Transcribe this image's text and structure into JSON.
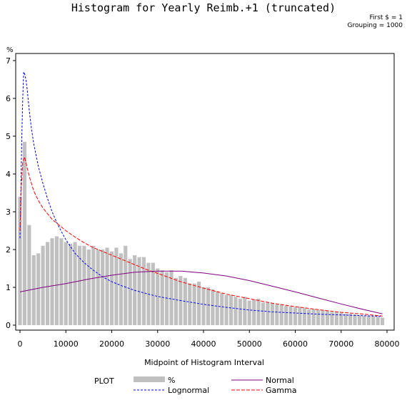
{
  "chart_data": {
    "type": "bar",
    "title": "Histogram for Yearly Reimb.+1 (truncated)",
    "notes": [
      "First $ = 1",
      "Grouping = 1000"
    ],
    "xlabel": "Midpoint of Histogram Interval",
    "ylabel": "%",
    "xlim": [
      -500,
      80000
    ],
    "ylim": [
      0,
      7
    ],
    "x_ticks": [
      0,
      10000,
      20000,
      30000,
      40000,
      50000,
      60000,
      70000,
      80000
    ],
    "y_ticks": [
      0,
      1,
      2,
      3,
      4,
      5,
      6,
      7
    ],
    "bar_width": 1000,
    "bars": {
      "name": "%",
      "color": "#c0c0c0",
      "x": [
        0,
        1000,
        2000,
        3000,
        4000,
        5000,
        6000,
        7000,
        8000,
        9000,
        10000,
        11000,
        12000,
        13000,
        14000,
        15000,
        16000,
        17000,
        18000,
        19000,
        20000,
        21000,
        22000,
        23000,
        24000,
        25000,
        26000,
        27000,
        28000,
        29000,
        30000,
        31000,
        32000,
        33000,
        34000,
        35000,
        36000,
        37000,
        38000,
        39000,
        40000,
        41000,
        42000,
        43000,
        44000,
        45000,
        46000,
        47000,
        48000,
        49000,
        50000,
        51000,
        52000,
        53000,
        54000,
        55000,
        56000,
        57000,
        58000,
        59000,
        60000,
        61000,
        62000,
        63000,
        64000,
        65000,
        66000,
        67000,
        68000,
        69000,
        70000,
        71000,
        72000,
        73000,
        74000,
        75000,
        76000,
        77000,
        78000,
        79000
      ],
      "values": [
        3.4,
        4.85,
        2.65,
        1.85,
        1.9,
        2.1,
        2.2,
        2.3,
        2.35,
        2.3,
        2.2,
        2.15,
        2.2,
        2.1,
        2.1,
        2.0,
        2.1,
        2.0,
        2.0,
        2.05,
        1.95,
        2.05,
        1.9,
        2.1,
        1.75,
        1.85,
        1.8,
        1.8,
        1.65,
        1.65,
        1.5,
        1.45,
        1.4,
        1.45,
        1.25,
        1.3,
        1.25,
        1.1,
        1.1,
        1.15,
        1.0,
        1.0,
        0.95,
        0.9,
        0.85,
        0.8,
        0.8,
        0.75,
        0.7,
        0.75,
        0.65,
        0.68,
        0.7,
        0.6,
        0.6,
        0.58,
        0.55,
        0.55,
        0.52,
        0.5,
        0.48,
        0.48,
        0.45,
        0.42,
        0.42,
        0.4,
        0.4,
        0.38,
        0.35,
        0.35,
        0.33,
        0.3,
        0.3,
        0.28,
        0.26,
        0.25,
        0.25,
        0.23,
        0.22,
        0.2
      ]
    },
    "series": [
      {
        "name": "Lognormal",
        "color": "#0000ff",
        "dash": "3,2",
        "x": [
          0,
          200,
          400,
          600,
          800,
          1000,
          1300,
          1600,
          2000,
          2500,
          3000,
          4000,
          5000,
          6000,
          7000,
          8000,
          9000,
          10000,
          12000,
          14000,
          16000,
          18000,
          20000,
          22000,
          25000,
          28000,
          30000,
          35000,
          40000,
          45000,
          50000,
          55000,
          60000,
          65000,
          70000,
          75000,
          79000
        ],
        "values": [
          2.3,
          3.6,
          5.0,
          6.0,
          6.7,
          6.65,
          6.5,
          6.2,
          5.7,
          5.2,
          4.8,
          4.2,
          3.75,
          3.35,
          3.0,
          2.72,
          2.48,
          2.26,
          1.9,
          1.65,
          1.45,
          1.28,
          1.15,
          1.05,
          0.92,
          0.82,
          0.76,
          0.65,
          0.55,
          0.47,
          0.4,
          0.35,
          0.32,
          0.29,
          0.27,
          0.25,
          0.23
        ]
      },
      {
        "name": "Gamma",
        "color": "#ff0000",
        "dash": "5,2",
        "x": [
          0,
          300,
          600,
          1000,
          1500,
          2000,
          2500,
          3000,
          4000,
          5000,
          6000,
          7000,
          8000,
          10000,
          12000,
          14000,
          16000,
          18000,
          20000,
          22000,
          25000,
          28000,
          30000,
          35000,
          40000,
          45000,
          50000,
          55000,
          60000,
          65000,
          70000,
          75000,
          79000
        ],
        "values": [
          2.5,
          3.7,
          4.3,
          4.45,
          4.2,
          3.95,
          3.75,
          3.55,
          3.3,
          3.1,
          2.95,
          2.8,
          2.7,
          2.5,
          2.33,
          2.18,
          2.05,
          1.95,
          1.85,
          1.75,
          1.6,
          1.45,
          1.37,
          1.15,
          0.98,
          0.82,
          0.7,
          0.58,
          0.49,
          0.41,
          0.34,
          0.29,
          0.24
        ]
      },
      {
        "name": "Normal",
        "color": "#800080",
        "dash": "",
        "x": [
          0,
          5000,
          10000,
          15000,
          20000,
          25000,
          30000,
          35000,
          40000,
          45000,
          50000,
          55000,
          60000,
          65000,
          70000,
          75000,
          79000
        ],
        "values": [
          0.88,
          1.0,
          1.1,
          1.22,
          1.32,
          1.4,
          1.43,
          1.43,
          1.38,
          1.3,
          1.18,
          1.03,
          0.88,
          0.72,
          0.56,
          0.41,
          0.3
        ]
      }
    ],
    "legend": {
      "plot_label": "PLOT",
      "order": [
        "%",
        "Normal",
        "Lognormal",
        "Gamma"
      ]
    }
  }
}
